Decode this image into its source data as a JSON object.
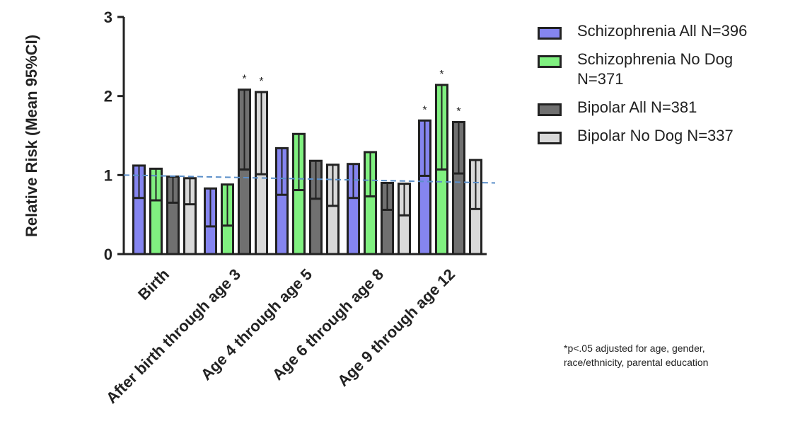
{
  "chart_data": {
    "type": "floating_bar",
    "y_label": "Relative Risk (Mean 95%CI)",
    "categories": [
      "Birth",
      "After birth through age 3",
      "Age 4 through age 5",
      "Age 6 through age 8",
      "Age 9 through age 12"
    ],
    "series": [
      {
        "name": "Schizophrenia All N=396",
        "color": "#8585f0",
        "lower": [
          0.71,
          0.35,
          0.75,
          0.71,
          0.99
        ],
        "upper": [
          1.12,
          0.83,
          1.34,
          1.14,
          1.69
        ],
        "markers": [
          null,
          null,
          null,
          null,
          "*"
        ]
      },
      {
        "name": "Schizophrenia No Dog N=371",
        "color": "#80f080",
        "lower": [
          0.68,
          0.36,
          0.81,
          0.73,
          1.07
        ],
        "upper": [
          1.08,
          0.88,
          1.52,
          1.29,
          2.14
        ],
        "markers": [
          null,
          null,
          null,
          null,
          "*"
        ]
      },
      {
        "name": "Bipolar All  N=381",
        "color": "#707070",
        "lower": [
          0.65,
          1.07,
          0.7,
          0.56,
          1.02
        ],
        "upper": [
          0.98,
          2.08,
          1.18,
          0.9,
          1.67
        ],
        "markers": [
          null,
          "*",
          null,
          null,
          "*"
        ]
      },
      {
        "name": "Bipolar No Dog N=337",
        "color": "#d9d9d9",
        "lower": [
          0.63,
          1.01,
          0.61,
          0.49,
          0.57
        ],
        "upper": [
          0.96,
          2.05,
          1.13,
          0.89,
          1.19
        ],
        "markers": [
          null,
          "*",
          null,
          null,
          null
        ]
      }
    ],
    "reference_line": [
      1.0,
      0.9
    ],
    "ylim": [
      0,
      3
    ],
    "yticks": [
      0,
      1,
      2,
      3
    ],
    "footnote": "*p<.05 adjusted for age, gender, race/ethnicity, parental education"
  }
}
